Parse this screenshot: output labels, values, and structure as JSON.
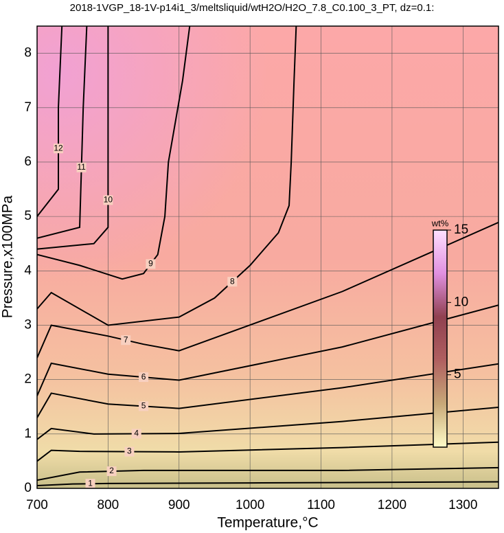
{
  "chart_data": {
    "type": "contour",
    "title": "2018-1VGP_18-1V-p14i1_3/meltsliquid/wtH2O/H2O_7.8_C0.100_3_PT, dz=0.1:",
    "x_label": "Temperature,°C",
    "y_label": "Pressure,x100MPa",
    "xlim": [
      700,
      1350
    ],
    "xticks": [
      700,
      800,
      900,
      1000,
      1100,
      1200,
      1300
    ],
    "ylim": [
      0,
      8.5
    ],
    "yticks": [
      0,
      1,
      2,
      3,
      4,
      5,
      6,
      7,
      8
    ],
    "grid": true,
    "contours": [
      {
        "level": 1,
        "x": [
          700,
          750,
          800,
          1000,
          1350
        ],
        "y": [
          0.05,
          0.08,
          0.09,
          0.1,
          0.12
        ]
      },
      {
        "level": 2,
        "x": [
          700,
          760,
          850,
          1130,
          1350
        ],
        "y": [
          0.15,
          0.3,
          0.33,
          0.33,
          0.38
        ]
      },
      {
        "level": 3,
        "x": [
          700,
          720,
          760,
          900,
          1130,
          1350
        ],
        "y": [
          0.5,
          0.7,
          0.68,
          0.67,
          0.75,
          0.85
        ]
      },
      {
        "level": 4,
        "x": [
          700,
          720,
          780,
          900,
          1130,
          1350
        ],
        "y": [
          0.9,
          1.1,
          1.0,
          1.01,
          1.23,
          1.49
        ]
      },
      {
        "level": 5,
        "x": [
          700,
          720,
          800,
          900,
          1130,
          1350
        ],
        "y": [
          1.3,
          1.75,
          1.55,
          1.47,
          1.85,
          2.29
        ]
      },
      {
        "level": 6,
        "x": [
          700,
          720,
          800,
          900,
          1130,
          1350
        ],
        "y": [
          1.7,
          2.3,
          2.1,
          1.99,
          2.6,
          3.37
        ]
      },
      {
        "level": 7,
        "x": [
          700,
          720,
          800,
          850,
          900,
          1130,
          1350
        ],
        "y": [
          2.4,
          3.0,
          2.8,
          2.65,
          2.53,
          3.62,
          4.89
        ]
      },
      {
        "level": 8,
        "x": [
          700,
          720,
          800,
          900,
          950,
          1000,
          1040,
          1055,
          1058,
          1062,
          1065
        ],
        "y": [
          3.3,
          3.6,
          3.0,
          3.15,
          3.5,
          4.1,
          4.7,
          5.2,
          6.0,
          7.5,
          8.5
        ]
      },
      {
        "level": 9,
        "x": [
          700,
          760,
          820,
          850,
          870,
          880,
          885,
          905,
          915
        ],
        "y": [
          4.3,
          4.1,
          3.85,
          3.95,
          4.3,
          5.0,
          6.0,
          7.5,
          8.5
        ]
      },
      {
        "level": 10,
        "x": [
          700,
          780,
          800,
          800,
          800,
          800
        ],
        "y": [
          4.4,
          4.5,
          4.8,
          5.8,
          7.5,
          8.5
        ]
      },
      {
        "level": 11,
        "x": [
          700,
          760,
          765,
          770
        ],
        "y": [
          4.6,
          4.8,
          7.0,
          8.5
        ]
      },
      {
        "level": 12,
        "x": [
          700,
          730,
          730,
          735
        ],
        "y": [
          5.0,
          5.5,
          7.0,
          8.5
        ]
      }
    ],
    "colorbar": {
      "label": "wt%",
      "lim": [
        0,
        15
      ],
      "ticks": [
        5,
        10,
        15
      ],
      "colors": [
        "#fffcc8",
        "#c8a878",
        "#b06060",
        "#904050",
        "#e090e0",
        "#ffe0ff"
      ]
    }
  }
}
